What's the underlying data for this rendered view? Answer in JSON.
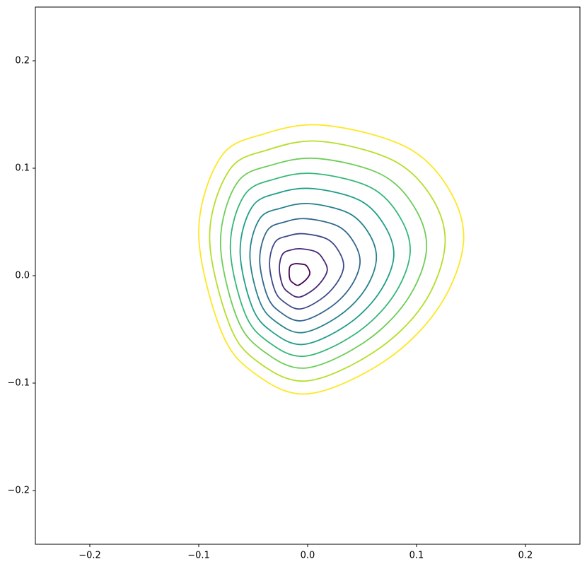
{
  "chart_data": {
    "type": "contour",
    "xlim": [
      -0.25,
      0.25
    ],
    "ylim": [
      -0.25,
      0.25
    ],
    "xticks": [
      {
        "value": -0.2,
        "label": "−0.2"
      },
      {
        "value": -0.1,
        "label": "−0.1"
      },
      {
        "value": 0,
        "label": "0.0"
      },
      {
        "value": 0.1,
        "label": "0.1"
      },
      {
        "value": 0.2,
        "label": "0.2"
      }
    ],
    "yticks": [
      {
        "value": -0.2,
        "label": "−0.2"
      },
      {
        "value": -0.1,
        "label": "−0.1"
      },
      {
        "value": 0,
        "label": "0.0"
      },
      {
        "value": 0.1,
        "label": "0.1"
      },
      {
        "value": 0.2,
        "label": "0.2"
      }
    ],
    "series": [
      {
        "color": "#440154",
        "x": [
          -0.008,
          -0.002,
          0.001,
          0.002,
          0.0,
          -0.004,
          -0.009,
          -0.013,
          -0.016,
          -0.017,
          -0.016,
          -0.012
        ],
        "values": [
          0.011,
          0.01,
          0.006,
          0.002,
          -0.002,
          -0.006,
          -0.009,
          -0.007,
          -0.004,
          0.003,
          0.009,
          0.011
        ]
      },
      {
        "color": "#482878",
        "x": [
          -0.006,
          0.008,
          0.015,
          0.018,
          0.013,
          0.004,
          -0.008,
          -0.017,
          -0.023,
          -0.026,
          -0.023,
          -0.015
        ],
        "values": [
          0.025,
          0.022,
          0.014,
          0.005,
          -0.005,
          -0.014,
          -0.02,
          -0.016,
          -0.009,
          0.007,
          0.02,
          0.024
        ]
      },
      {
        "color": "#3e4989",
        "x": [
          -0.003,
          0.018,
          0.029,
          0.033,
          0.026,
          0.012,
          -0.007,
          -0.021,
          -0.03,
          -0.035,
          -0.03,
          -0.018
        ],
        "values": [
          0.039,
          0.034,
          0.022,
          0.008,
          -0.008,
          -0.022,
          -0.031,
          -0.025,
          -0.014,
          0.011,
          0.031,
          0.037
        ]
      },
      {
        "color": "#31688e",
        "x": [
          -0.001,
          0.028,
          0.043,
          0.048,
          0.039,
          0.02,
          -0.006,
          -0.025,
          -0.037,
          -0.044,
          -0.037,
          -0.021
        ],
        "values": [
          0.053,
          0.046,
          0.03,
          0.011,
          -0.011,
          -0.03,
          -0.042,
          -0.034,
          -0.019,
          0.015,
          0.042,
          0.05
        ]
      },
      {
        "color": "#26828e",
        "x": [
          0.002,
          0.038,
          0.057,
          0.063,
          0.052,
          0.028,
          -0.005,
          -0.029,
          -0.044,
          -0.053,
          -0.044,
          -0.024
        ],
        "values": [
          0.067,
          0.058,
          0.038,
          0.014,
          -0.014,
          -0.038,
          -0.053,
          -0.043,
          -0.024,
          0.019,
          0.053,
          0.063
        ]
      },
      {
        "color": "#1f9e89",
        "x": [
          0.005,
          0.048,
          0.071,
          0.079,
          0.065,
          0.036,
          -0.004,
          -0.033,
          -0.051,
          -0.062,
          -0.051,
          -0.027
        ],
        "values": [
          0.081,
          0.07,
          0.046,
          0.017,
          -0.017,
          -0.046,
          -0.064,
          -0.052,
          -0.029,
          0.023,
          0.064,
          0.077
        ]
      },
      {
        "color": "#35b779",
        "x": [
          0.007,
          0.058,
          0.085,
          0.094,
          0.078,
          0.044,
          -0.003,
          -0.037,
          -0.058,
          -0.071,
          -0.058,
          -0.03
        ],
        "values": [
          0.095,
          0.082,
          0.054,
          0.02,
          -0.02,
          -0.054,
          -0.075,
          -0.061,
          -0.034,
          0.027,
          0.075,
          0.09
        ]
      },
      {
        "color": "#6ece58",
        "x": [
          0.01,
          0.068,
          0.099,
          0.109,
          0.091,
          0.052,
          -0.002,
          -0.041,
          -0.065,
          -0.08,
          -0.065,
          -0.033
        ],
        "values": [
          0.109,
          0.094,
          0.062,
          0.023,
          -0.023,
          -0.062,
          -0.086,
          -0.07,
          -0.039,
          0.031,
          0.086,
          0.103
        ]
      },
      {
        "color": "#b5de2b",
        "x": [
          0.012,
          0.079,
          0.115,
          0.126,
          0.106,
          0.061,
          -0.001,
          -0.046,
          -0.072,
          -0.09,
          -0.072,
          -0.037
        ],
        "values": [
          0.125,
          0.107,
          0.071,
          0.027,
          -0.027,
          -0.071,
          -0.098,
          -0.08,
          -0.045,
          0.036,
          0.098,
          0.117
        ]
      },
      {
        "color": "#fde725",
        "x": [
          0.015,
          0.09,
          0.13,
          0.143,
          0.12,
          0.07,
          0.0,
          -0.05,
          -0.08,
          -0.1,
          -0.08,
          -0.04
        ],
        "values": [
          0.14,
          0.12,
          0.08,
          0.03,
          -0.03,
          -0.08,
          -0.11,
          -0.09,
          -0.05,
          0.04,
          0.11,
          0.132
        ]
      }
    ]
  }
}
